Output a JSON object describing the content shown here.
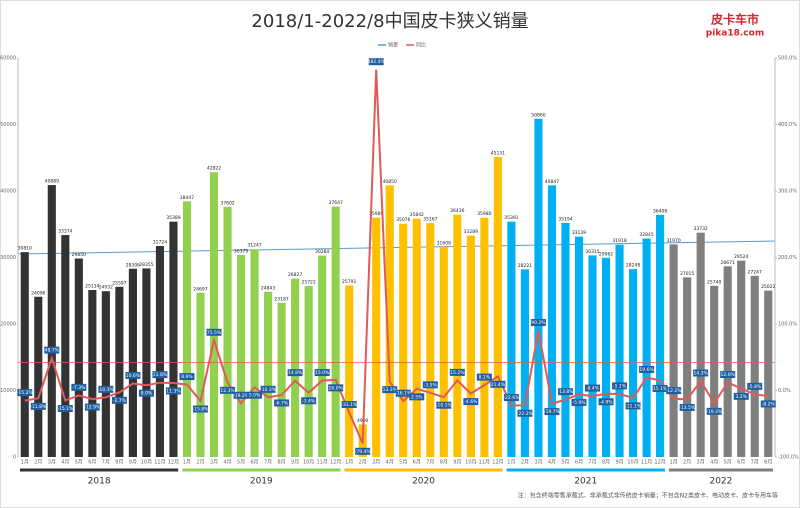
{
  "chart_data": {
    "type": "bar",
    "title": "2018/1-2022/8中国皮卡狭义销量",
    "logo": "皮卡车市",
    "logo_url": "pika18.com",
    "note": "注：包含终端零售承载式、非承载式非传统皮卡销量；不包含N2类皮卡、电动皮卡、皮卡专用车等",
    "categories": [
      "1月",
      "2月",
      "3月",
      "4月",
      "5月",
      "6月",
      "7月",
      "8月",
      "9月",
      "10月",
      "11月",
      "12月",
      "1月",
      "2月",
      "3月",
      "4月",
      "5月",
      "6月",
      "7月",
      "8月",
      "9月",
      "10月",
      "11月",
      "12月",
      "1月",
      "2月",
      "3月",
      "4月",
      "5月",
      "6月",
      "7月",
      "8月",
      "9月",
      "10月",
      "11月",
      "12月",
      "1月",
      "2月",
      "3月",
      "4月",
      "5月",
      "6月",
      "7月",
      "8月",
      "9月",
      "10月",
      "11月",
      "12月",
      "1月",
      "2月",
      "3月",
      "4月",
      "5月",
      "6月",
      "7月",
      "8月"
    ],
    "groups": [
      {
        "name": "2018",
        "color": "#333333"
      },
      {
        "name": "2019",
        "color": "#92d050"
      },
      {
        "name": "2020",
        "color": "#ffc000"
      },
      {
        "name": "2021",
        "color": "#00b0f0"
      },
      {
        "name": "2022",
        "color": "#7f7f7f"
      }
    ],
    "series": [
      {
        "name": "销量",
        "color": "#5b9bd5",
        "values": [
          30810,
          24096,
          40889,
          33374,
          29850,
          25114,
          24932,
          25597,
          28306,
          28355,
          31724,
          35389,
          38447,
          24697,
          42822,
          37602,
          30379,
          31247,
          24843,
          23187,
          26827,
          25722,
          30284,
          37647,
          25791,
          4900,
          35989,
          40850,
          35076,
          35842,
          35167,
          31608,
          36436,
          33289,
          35980,
          45131,
          35391,
          28221,
          50860,
          40847,
          35194,
          33139,
          30315,
          29962,
          31918,
          28248,
          32845,
          36408,
          31970,
          27015,
          33732,
          25740,
          28671,
          29524,
          27247,
          25022
        ]
      },
      {
        "name": "同比",
        "color": "#e05a5a",
        "axis": "y2",
        "values": [
          -15.2,
          -11.8,
          48.7,
          -15.1,
          -7.3,
          -12.9,
          -10.3,
          -2.7,
          10.6,
          8.0,
          11.8,
          11.3,
          8.9,
          -15.8,
          75.5,
          12.3,
          -19.2,
          5.0,
          -10.3,
          -6.7,
          14.8,
          -3.4,
          15.0,
          16.0,
          -33.1,
          -79.4,
          482.4,
          13.3,
          -16.1,
          2.5,
          -3.5,
          -10.1,
          15.2,
          -4.6,
          8.1,
          21.4,
          -22.6,
          -22.2,
          90.2,
          -19.7,
          -13.8,
          -5.9,
          -8.4,
          -4.9,
          -5.1,
          -11.1,
          19.6,
          15.1,
          -12.2,
          -13.5,
          14.3,
          -19.3,
          12.0,
          3.2,
          -5.8,
          -8.2
        ],
        "value_labels": [
          "-15.2%",
          "-11.8%",
          "48.7%",
          "-15.1%",
          "-7.3%",
          "-12.9%",
          "-10.3%",
          "-2.7%",
          "10.6%",
          "8.0%",
          "11.8%",
          "11.3%",
          "8.9%",
          "-15.8%",
          "75.5%",
          "12.3%",
          "-19.2%",
          "5.0%",
          "-10.3%",
          "-6.7%",
          "14.8%",
          "-3.4%",
          "15.0%",
          "16.0%",
          "-33.1%",
          "-79.4%",
          "482.4%",
          "13.3%",
          "-16.1%",
          "2.5%",
          "-3.5%",
          "-10.1%",
          "15.2%",
          "-4.6%",
          "8.1%",
          "21.4%",
          "-22.6%",
          "-22.2%",
          "90.2%",
          "-19.7%",
          "-13.8%",
          "-5.9%",
          "-8.4%",
          "-4.9%",
          "-5.1%",
          "-11.1%",
          "19.6%",
          "15.1%",
          "-12.2%",
          "-13.5%",
          "14.3%",
          "-19.3%",
          "12.0%",
          "3.2%",
          "-5.8%",
          "-8.2%"
        ]
      }
    ],
    "ylim": [
      0,
      60000
    ],
    "yticks": [
      0,
      10000,
      20000,
      30000,
      40000,
      50000,
      60000
    ],
    "y2lim": [
      -100,
      500
    ],
    "y2ticks": [
      {
        "value": -100,
        "label": "-100.0%"
      },
      {
        "value": 0,
        "label": "0.0%"
      },
      {
        "value": 100,
        "label": "100.0%"
      },
      {
        "value": 200,
        "label": "200.0%"
      },
      {
        "value": 300,
        "label": "300.0%"
      },
      {
        "value": 400,
        "label": "400.0%"
      },
      {
        "value": 500,
        "label": "500.0%"
      }
    ]
  }
}
